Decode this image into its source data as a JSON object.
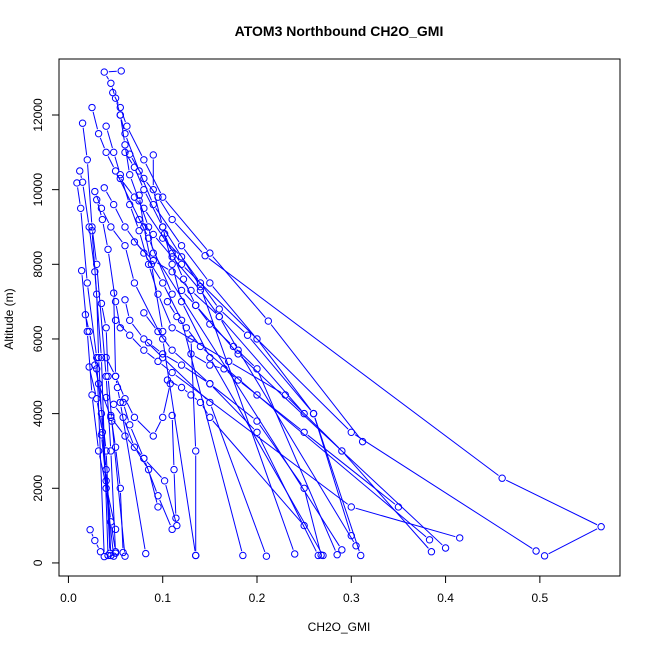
{
  "chart_data": {
    "type": "line",
    "title": "ATOM3 Northbound CH2O_GMI",
    "xlabel": "CH2O_GMI",
    "ylabel": "Altitude (m)",
    "xlim": [
      -0.01,
      0.585
    ],
    "ylim": [
      -350,
      13500
    ],
    "x_ticks": [
      0.0,
      0.1,
      0.2,
      0.3,
      0.4,
      0.5
    ],
    "x_tick_labels": [
      "0.0",
      "0.1",
      "0.2",
      "0.3",
      "0.4",
      "0.5"
    ],
    "y_ticks": [
      0,
      2000,
      4000,
      6000,
      8000,
      10000,
      12000
    ],
    "y_tick_labels": [
      "0",
      "2000",
      "4000",
      "6000",
      "8000",
      "10000",
      "12000"
    ],
    "grid": false,
    "legend": "none",
    "series_color": "#0000ff",
    "marker": "open-circle",
    "series": [
      {
        "x": [
          0.056,
          0.038,
          0.045,
          0.05,
          0.055,
          0.06,
          0.075,
          0.09,
          0.12,
          0.15,
          0.2,
          0.26,
          0.3
        ],
        "y": [
          13180,
          13150,
          12850,
          12450,
          12000,
          11500,
          10500,
          9600,
          8500,
          7500,
          6000,
          4000,
          730
        ]
      },
      {
        "x": [
          0.047,
          0.055,
          0.062,
          0.08,
          0.1,
          0.15,
          0.212,
          0.312
        ],
        "y": [
          12600,
          12200,
          11700,
          10800,
          9800,
          8300,
          6480,
          3250
        ]
      },
      {
        "x": [
          0.025,
          0.032,
          0.04,
          0.05,
          0.085,
          0.11
        ],
        "y": [
          12200,
          11500,
          11000,
          10500,
          8700,
          7200
        ]
      },
      {
        "x": [
          0.015,
          0.02,
          0.025,
          0.03,
          0.04,
          0.045,
          0.05
        ],
        "y": [
          11780,
          10800,
          9000,
          8000,
          5000,
          3000,
          260
        ]
      },
      {
        "x": [
          0.012,
          0.015,
          0.022,
          0.028,
          0.035,
          0.042
        ],
        "y": [
          10500,
          10200,
          9000,
          7800,
          5500,
          200
        ]
      },
      {
        "x": [
          0.009,
          0.013,
          0.02,
          0.03,
          0.038
        ],
        "y": [
          10180,
          9500,
          7500,
          5500,
          170
        ]
      },
      {
        "x": [
          0.06,
          0.07,
          0.08,
          0.1,
          0.14,
          0.24
        ],
        "y": [
          11000,
          10600,
          10000,
          9000,
          7400,
          240
        ]
      },
      {
        "x": [
          0.09,
          0.09,
          0.1,
          0.11,
          0.12,
          0.15,
          0.27
        ],
        "y": [
          10930,
          10000,
          9000,
          8000,
          7000,
          5500,
          200
        ]
      },
      {
        "x": [
          0.065,
          0.08,
          0.095,
          0.11,
          0.145,
          0.46,
          0.565,
          0.505
        ],
        "y": [
          10950,
          10300,
          9800,
          9200,
          8230,
          2270,
          970,
          190
        ]
      },
      {
        "x": [
          0.055,
          0.07,
          0.08,
          0.12,
          0.3,
          0.496
        ],
        "y": [
          10300,
          9800,
          9500,
          8000,
          3500,
          320
        ]
      },
      {
        "x": [
          0.028,
          0.035,
          0.045,
          0.06,
          0.07,
          0.1,
          0.135
        ],
        "y": [
          9950,
          9500,
          9000,
          8500,
          7500,
          6000,
          200
        ]
      },
      {
        "x": [
          0.038,
          0.048,
          0.06,
          0.08,
          0.1,
          0.12,
          0.185
        ],
        "y": [
          10050,
          9600,
          9000,
          8300,
          7500,
          6500,
          200
        ]
      },
      {
        "x": [
          0.07,
          0.09,
          0.11,
          0.13,
          0.16,
          0.18,
          0.305
        ],
        "y": [
          8600,
          8100,
          7800,
          7300,
          6600,
          5700,
          460
        ]
      },
      {
        "x": [
          0.04,
          0.048,
          0.055,
          0.065,
          0.075,
          0.085,
          0.095,
          0.11,
          0.17,
          0.23,
          0.29,
          0.385
        ],
        "y": [
          11700,
          11000,
          10400,
          9600,
          8900,
          8000,
          7200,
          6300,
          5400,
          4500,
          3000,
          300
        ]
      },
      {
        "x": [
          0.025,
          0.03,
          0.032,
          0.035,
          0.04,
          0.048
        ],
        "y": [
          8900,
          7200,
          5500,
          4000,
          2000,
          180
        ]
      },
      {
        "x": [
          0.018,
          0.022,
          0.03,
          0.04,
          0.045
        ],
        "y": [
          6650,
          6200,
          5200,
          3000,
          200
        ]
      },
      {
        "x": [
          0.014,
          0.02,
          0.025,
          0.032,
          0.05
        ],
        "y": [
          7830,
          6200,
          4500,
          3000,
          900
        ]
      },
      {
        "x": [
          0.035,
          0.04,
          0.042,
          0.046,
          0.06
        ],
        "y": [
          6950,
          6300,
          5000,
          3800,
          180
        ]
      },
      {
        "x": [
          0.048,
          0.05,
          0.052,
          0.055,
          0.082
        ],
        "y": [
          7230,
          5000,
          4700,
          4300,
          250
        ]
      },
      {
        "x": [
          0.06,
          0.065,
          0.08,
          0.1,
          0.15,
          0.21
        ],
        "y": [
          7050,
          6500,
          6000,
          5500,
          4300,
          180
        ]
      },
      {
        "x": [
          0.08,
          0.095,
          0.11,
          0.15,
          0.2,
          0.265
        ],
        "y": [
          6700,
          6200,
          5700,
          4800,
          3500,
          200
        ]
      },
      {
        "x": [
          0.085,
          0.1,
          0.12,
          0.15,
          0.2,
          0.25,
          0.268
        ],
        "y": [
          5900,
          5600,
          5300,
          4800,
          3800,
          2000,
          210
        ]
      },
      {
        "x": [
          0.12,
          0.135,
          0.15,
          0.175,
          0.2,
          0.285
        ],
        "y": [
          7300,
          6900,
          6400,
          5800,
          5200,
          220
        ]
      },
      {
        "x": [
          0.13,
          0.15,
          0.165,
          0.18,
          0.25,
          0.35
        ],
        "y": [
          5600,
          5300,
          5200,
          4900,
          3500,
          1500
        ]
      },
      {
        "x": [
          0.1,
          0.12,
          0.14,
          0.16,
          0.19,
          0.26,
          0.31
        ],
        "y": [
          8700,
          8200,
          7500,
          6800,
          6100,
          4000,
          200
        ]
      },
      {
        "x": [
          0.075,
          0.09,
          0.11,
          0.14,
          0.16,
          0.25
        ],
        "y": [
          9200,
          8800,
          8200,
          7300,
          6600,
          4000
        ]
      },
      {
        "x": [
          0.105,
          0.115,
          0.125,
          0.14,
          0.2,
          0.383
        ],
        "y": [
          7000,
          6600,
          6300,
          5800,
          4500,
          620
        ]
      },
      {
        "x": [
          0.05,
          0.065,
          0.08,
          0.095,
          0.11,
          0.3,
          0.415
        ],
        "y": [
          6500,
          6100,
          5700,
          5400,
          5100,
          1500,
          670
        ]
      },
      {
        "x": [
          0.04,
          0.05,
          0.06,
          0.07,
          0.09,
          0.1,
          0.108
        ],
        "y": [
          5500,
          5000,
          4400,
          3900,
          3400,
          3900,
          4800
        ]
      },
      {
        "x": [
          0.028,
          0.032,
          0.045,
          0.06,
          0.08,
          0.102,
          0.115
        ],
        "y": [
          5300,
          4800,
          3900,
          3400,
          2800,
          2200,
          1000
        ]
      },
      {
        "x": [
          0.022,
          0.03,
          0.036,
          0.04,
          0.044
        ],
        "y": [
          5250,
          4400,
          3500,
          2500,
          260
        ]
      },
      {
        "x": [
          0.04,
          0.048,
          0.058,
          0.07,
          0.085,
          0.095
        ],
        "y": [
          4430,
          4250,
          3900,
          3100,
          2500,
          1500
        ]
      },
      {
        "x": [
          0.058,
          0.065,
          0.08,
          0.095,
          0.11
        ],
        "y": [
          4300,
          3700,
          2800,
          1800,
          900
        ]
      },
      {
        "x": [
          0.045,
          0.05,
          0.055,
          0.058
        ],
        "y": [
          3950,
          3100,
          2000,
          280
        ]
      },
      {
        "x": [
          0.035,
          0.04,
          0.045,
          0.05
        ],
        "y": [
          3430,
          2200,
          1100,
          300
        ]
      },
      {
        "x": [
          0.11,
          0.112,
          0.114
        ],
        "y": [
          3950,
          2500,
          1200
        ]
      },
      {
        "x": [
          0.023,
          0.028,
          0.034
        ],
        "y": [
          890,
          600,
          300
        ]
      },
      {
        "x": [
          0.03,
          0.036,
          0.042,
          0.05,
          0.055
        ],
        "y": [
          9730,
          9200,
          8400,
          7000,
          6300
        ]
      },
      {
        "x": [
          0.102,
          0.11,
          0.122,
          0.135,
          0.18,
          0.4
        ],
        "y": [
          8820,
          8300,
          7600,
          6900,
          5600,
          400
        ]
      },
      {
        "x": [
          0.055,
          0.06,
          0.065,
          0.075,
          0.085,
          0.09,
          0.29
        ],
        "y": [
          12000,
          11200,
          10400,
          9700,
          9000,
          8300,
          350
        ]
      },
      {
        "x": [
          0.105,
          0.12,
          0.13,
          0.14,
          0.15,
          0.25
        ],
        "y": [
          4900,
          4700,
          4500,
          4300,
          3900,
          1000
        ]
      },
      {
        "x": [
          0.13,
          0.135,
          0.135
        ],
        "y": [
          6000,
          3000,
          200
        ]
      },
      {
        "x": [
          0.075,
          0.08,
          0.088,
          0.1
        ],
        "y": [
          9850,
          9000,
          8000,
          6200
        ]
      }
    ]
  }
}
